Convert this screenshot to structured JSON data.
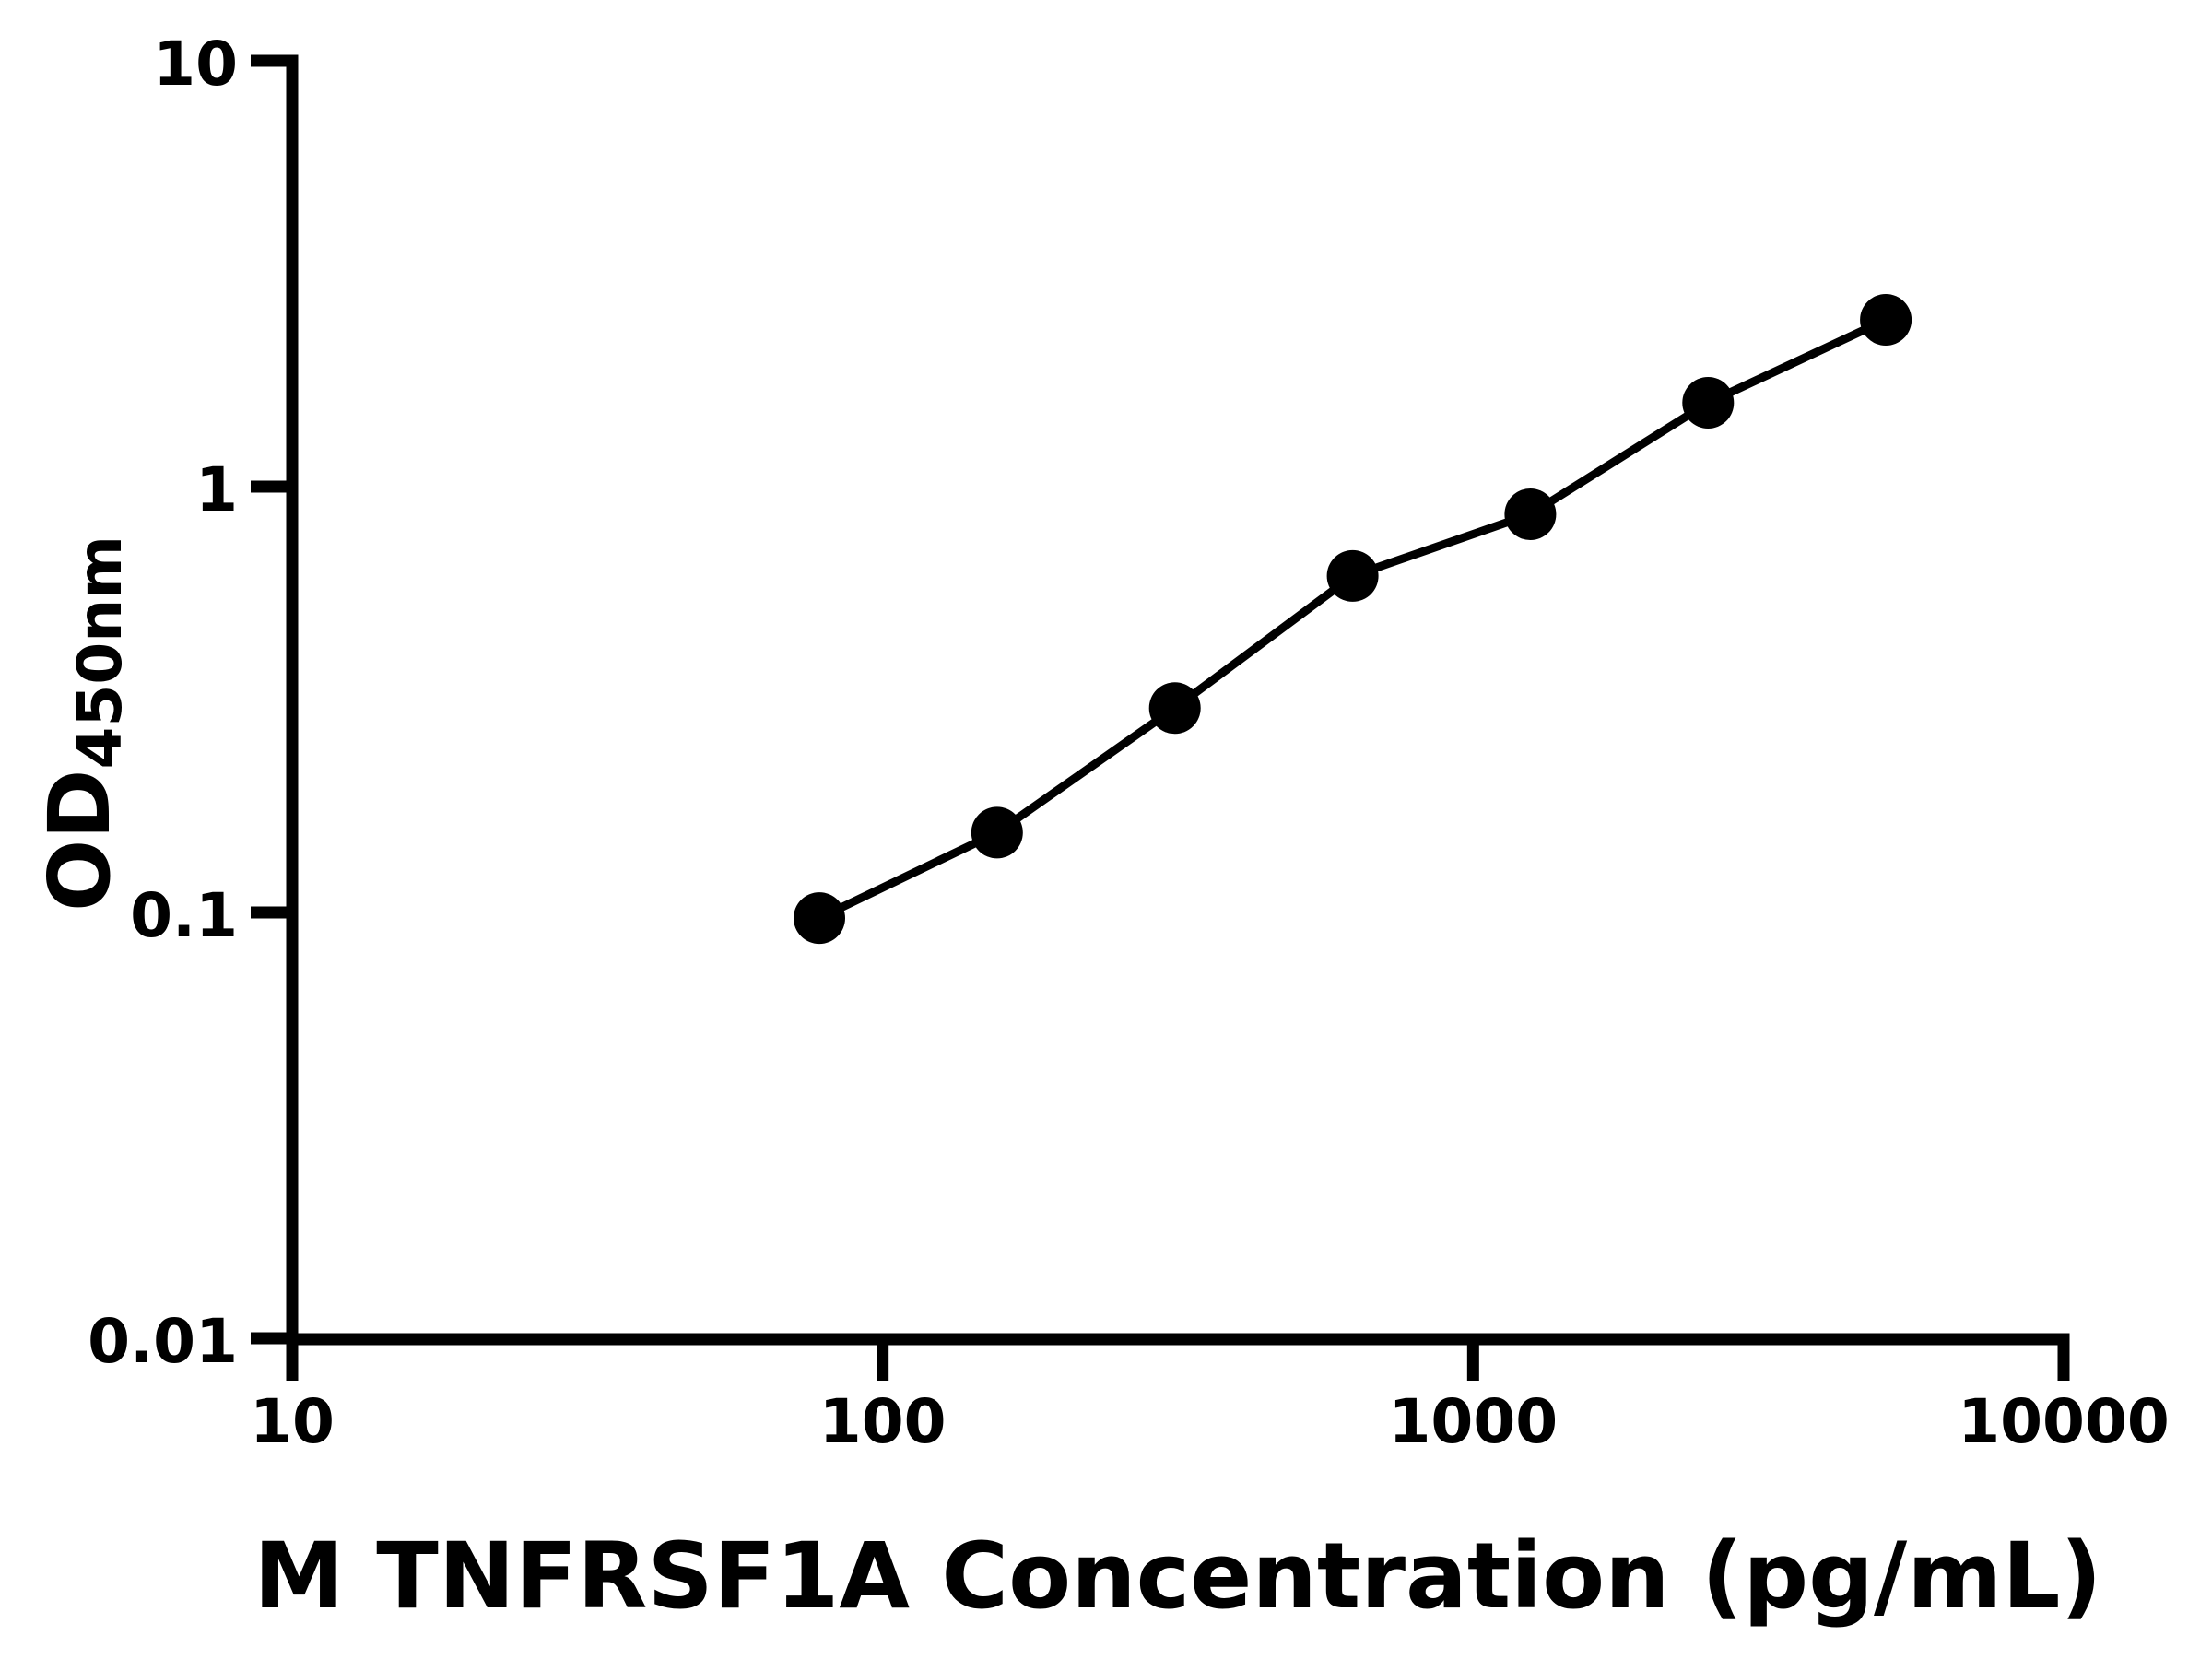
{
  "figure": {
    "background_color": "#ffffff",
    "ink_color": "#000000"
  },
  "chart_data": {
    "type": "scatter",
    "subtype": "standard-curve-line-with-markers",
    "title": "",
    "xlabel": "M TNFRSF1A Concentration (pg/mL)",
    "ylabel_main": "OD",
    "ylabel_sub": "450nm",
    "x_scale": "log",
    "y_scale": "log",
    "xlim": [
      10,
      10000
    ],
    "ylim": [
      0.01,
      10
    ],
    "grid": false,
    "legend": "none",
    "x_ticks": [
      {
        "value": 10,
        "label": "10"
      },
      {
        "value": 100,
        "label": "100"
      },
      {
        "value": 1000,
        "label": "1000"
      },
      {
        "value": 10000,
        "label": "10000"
      }
    ],
    "y_ticks": [
      {
        "value": 0.01,
        "label": "0.01"
      },
      {
        "value": 0.1,
        "label": "0.1"
      },
      {
        "value": 1,
        "label": "1"
      },
      {
        "value": 10,
        "label": "10"
      }
    ],
    "series": [
      {
        "name": "standard-curve",
        "marker": "filled-circle",
        "color": "#000000",
        "points": [
          {
            "x": 78.125,
            "y": 0.097
          },
          {
            "x": 156.25,
            "y": 0.154
          },
          {
            "x": 312.5,
            "y": 0.302
          },
          {
            "x": 625,
            "y": 0.617
          },
          {
            "x": 1250,
            "y": 0.861
          },
          {
            "x": 2500,
            "y": 1.574
          },
          {
            "x": 5000,
            "y": 2.465
          }
        ]
      }
    ]
  }
}
